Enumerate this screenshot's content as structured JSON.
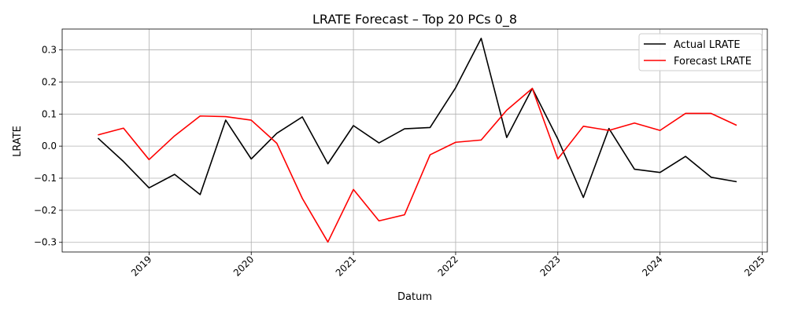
{
  "chart_data": {
    "type": "line",
    "title": "LRATE Forecast – Top 20 PCs 0_8",
    "xlabel": "Datum",
    "ylabel": "LRATE",
    "xlim": [
      2018.15,
      2025.05
    ],
    "ylim": [
      -0.33,
      0.365
    ],
    "x_ticks": [
      2019,
      2020,
      2021,
      2022,
      2023,
      2024,
      2025
    ],
    "x_tick_labels": [
      "2019",
      "2020",
      "2021",
      "2022",
      "2023",
      "2024",
      "2025"
    ],
    "y_ticks": [
      -0.3,
      -0.2,
      -0.1,
      0.0,
      0.1,
      0.2,
      0.3
    ],
    "y_tick_labels": [
      "−0.3",
      "−0.2",
      "−0.1",
      "0.0",
      "0.1",
      "0.2",
      "0.3"
    ],
    "grid": true,
    "legend_position": "top-right",
    "x": [
      2018.5,
      2018.75,
      2019.0,
      2019.25,
      2019.5,
      2019.75,
      2020.0,
      2020.25,
      2020.5,
      2020.75,
      2021.0,
      2021.25,
      2021.5,
      2021.75,
      2022.0,
      2022.25,
      2022.5,
      2022.75,
      2023.0,
      2023.25,
      2023.5,
      2023.75,
      2024.0,
      2024.25,
      2024.5,
      2024.75
    ],
    "series": [
      {
        "name": "Actual LRATE",
        "color": "#000000",
        "values": [
          0.025,
          -0.048,
          -0.13,
          -0.088,
          -0.151,
          0.081,
          -0.04,
          0.04,
          0.091,
          -0.055,
          0.064,
          0.01,
          0.054,
          0.058,
          0.182,
          0.336,
          0.027,
          0.18,
          0.022,
          -0.16,
          0.055,
          -0.072,
          -0.082,
          -0.032,
          -0.097,
          -0.111
        ]
      },
      {
        "name": "Forecast LRATE",
        "color": "#ff0000",
        "values": [
          0.035,
          0.056,
          -0.042,
          0.032,
          0.094,
          0.092,
          0.081,
          0.009,
          -0.163,
          -0.299,
          -0.135,
          -0.233,
          -0.214,
          -0.027,
          0.012,
          0.019,
          0.112,
          0.18,
          -0.04,
          0.062,
          0.049,
          0.072,
          0.049,
          0.102,
          0.102,
          0.065
        ]
      }
    ]
  }
}
